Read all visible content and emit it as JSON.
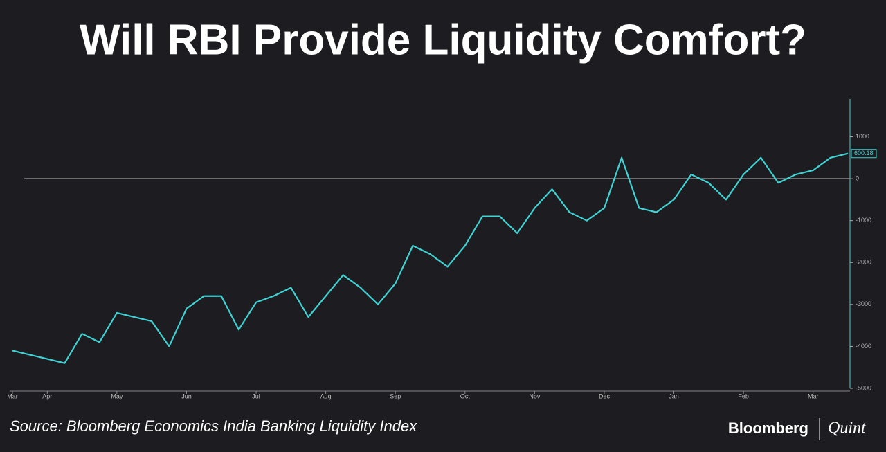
{
  "chart_data": {
    "type": "line",
    "title": "Will RBI Provide Liquidity Comfort?",
    "source": "Source: Bloomberg Economics India Banking Liquidity Index",
    "brand": [
      "Bloomberg",
      "Quint"
    ],
    "categories": [
      "Mar",
      null,
      "Apr",
      null,
      null,
      null,
      "May",
      null,
      null,
      null,
      "Jun",
      null,
      null,
      null,
      "Jul",
      null,
      null,
      null,
      "Aug",
      null,
      null,
      null,
      "Sep",
      null,
      null,
      null,
      "Oct",
      null,
      null,
      null,
      "Nov",
      null,
      null,
      null,
      "Dec",
      null,
      null,
      null,
      "Jan",
      null,
      null,
      null,
      "Feb",
      null,
      null,
      null,
      "Mar",
      null,
      null
    ],
    "series": [
      {
        "name": "India Banking Liquidity Index",
        "color": "#3fd3d3",
        "values": [
          -4100,
          -4200,
          -4300,
          -4400,
          -3700,
          -3900,
          -3200,
          -3300,
          -3400,
          -4000,
          -3100,
          -2800,
          -2800,
          -3600,
          -2950,
          -2800,
          -2600,
          -3300,
          -2800,
          -2300,
          -2600,
          -3000,
          -2500,
          -1600,
          -1800,
          -2100,
          -1600,
          -900,
          -900,
          -1300,
          -700,
          -250,
          -800,
          -1000,
          -700,
          500,
          -700,
          -800,
          -500,
          100,
          -100,
          -500,
          100,
          500,
          -100,
          100,
          200,
          500,
          600.18
        ]
      }
    ],
    "reference_line": 0,
    "ylim": [
      -5000,
      1900
    ],
    "yticks": [
      1000,
      0,
      -1000,
      -2000,
      -3000,
      -4000,
      -5000
    ]
  }
}
